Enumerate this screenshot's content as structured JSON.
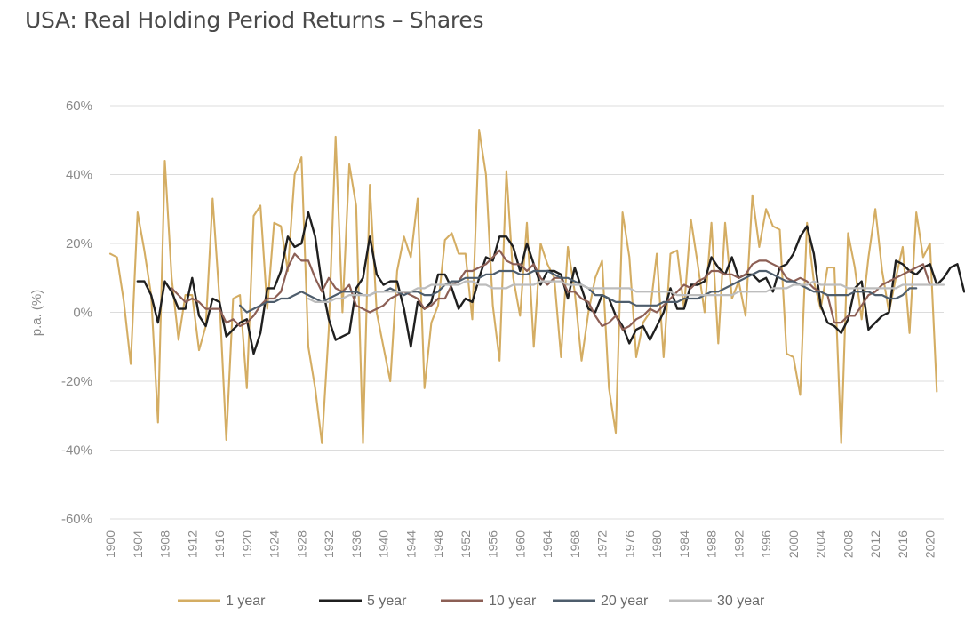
{
  "chart_data": {
    "type": "line",
    "title": "USA: Real Holding Period Returns – Shares",
    "ylabel": "p.a. (%)",
    "xlabel": "",
    "ylim": [
      -60,
      60
    ],
    "xlim": [
      1900,
      2022
    ],
    "yticks": [
      60,
      40,
      20,
      0,
      -20,
      -40,
      -60
    ],
    "ytick_labels": [
      "60%",
      "40%",
      "20%",
      "0%",
      "-20%",
      "-40%",
      "-60%"
    ],
    "xticks": [
      1900,
      1904,
      1908,
      1912,
      1916,
      1920,
      1924,
      1928,
      1932,
      1936,
      1940,
      1944,
      1948,
      1952,
      1956,
      1960,
      1964,
      1968,
      1972,
      1976,
      1980,
      1984,
      1988,
      1992,
      1996,
      2000,
      2004,
      2008,
      2012,
      2016,
      2020
    ],
    "grid": true,
    "legend_position": "bottom",
    "series": [
      {
        "name": "1 year",
        "color": "#d4ad63",
        "start_year": 1900,
        "values": [
          17,
          16,
          3,
          -15,
          29,
          18,
          5,
          -32,
          44,
          10,
          -8,
          5,
          5,
          -11,
          -4,
          33,
          4,
          -37,
          4,
          5,
          -22,
          28,
          31,
          1,
          26,
          25,
          12,
          40,
          45,
          -10,
          -22,
          -38,
          -5,
          51,
          0,
          43,
          31,
          -38,
          37,
          0,
          -10,
          -20,
          12,
          22,
          16,
          33,
          -22,
          -3,
          2,
          21,
          23,
          17,
          17,
          -2,
          53,
          40,
          2,
          -14,
          41,
          10,
          -1,
          26,
          -10,
          20,
          14,
          10,
          -13,
          19,
          6,
          -14,
          0,
          10,
          15,
          -22,
          -35,
          29,
          16,
          -13,
          -3,
          0,
          17,
          -13,
          17,
          18,
          1,
          27,
          14,
          0,
          26,
          -9,
          26,
          4,
          9,
          -1,
          34,
          19,
          30,
          25,
          24,
          -12,
          -13,
          -24,
          26,
          9,
          1,
          13,
          13,
          -38,
          23,
          13,
          -2,
          16,
          30,
          12,
          0,
          10,
          19,
          -6,
          29,
          16,
          20,
          -23
        ]
      },
      {
        "name": "5 year",
        "color": "#1f1f1f",
        "start_year": 1904,
        "values": [
          9,
          9,
          5,
          -3,
          9,
          6,
          1,
          1,
          10,
          -1,
          -4,
          4,
          3,
          -7,
          -5,
          -3,
          -2,
          -12,
          -6,
          7,
          7,
          12,
          22,
          19,
          20,
          29,
          22,
          8,
          -2,
          -8,
          -7,
          -6,
          7,
          10,
          22,
          11,
          8,
          9,
          9,
          1,
          -10,
          3,
          1,
          3,
          11,
          11,
          7,
          1,
          4,
          3,
          10,
          16,
          15,
          22,
          22,
          19,
          12,
          20,
          14,
          8,
          12,
          12,
          11,
          4,
          13,
          7,
          1,
          0,
          5,
          4,
          -1,
          -4,
          -9,
          -5,
          -4,
          -8,
          -4,
          0,
          7,
          1,
          1,
          8,
          8,
          9,
          16,
          13,
          11,
          16,
          10,
          11,
          11,
          9,
          10,
          6,
          13,
          14,
          17,
          22,
          25,
          17,
          2,
          -3,
          -4,
          -6,
          -2,
          7,
          9,
          -5,
          -3,
          -1,
          0,
          15,
          14,
          12,
          11,
          13,
          14,
          8,
          10,
          13,
          14,
          6
        ]
      },
      {
        "name": "10 year",
        "color": "#8c5f55",
        "start_year": 1909,
        "values": [
          7,
          5,
          3,
          4,
          3,
          1,
          1,
          1,
          -3,
          -2,
          -4,
          -3,
          -1,
          2,
          4,
          4,
          6,
          13,
          17,
          15,
          15,
          10,
          6,
          10,
          7,
          6,
          8,
          2,
          1,
          0,
          1,
          2,
          4,
          5,
          6,
          5,
          4,
          1,
          2,
          4,
          4,
          8,
          9,
          12,
          12,
          13,
          14,
          16,
          18,
          15,
          14,
          14,
          12,
          14,
          10,
          8,
          10,
          10,
          6,
          6,
          4,
          3,
          -1,
          -4,
          -3,
          -1,
          -5,
          -4,
          -2,
          -1,
          1,
          0,
          2,
          4,
          6,
          8,
          7,
          9,
          10,
          12,
          12,
          11,
          11,
          10,
          11,
          14,
          15,
          15,
          14,
          13,
          10,
          9,
          10,
          9,
          7,
          6,
          5,
          -3,
          -3,
          -1,
          -1,
          2,
          5,
          6,
          8,
          9,
          10,
          11,
          12,
          13,
          14,
          8
        ]
      },
      {
        "name": "20 year",
        "color": "#4e5d6c",
        "start_year": 1919,
        "values": [
          2,
          0,
          1,
          2,
          3,
          3,
          4,
          4,
          5,
          6,
          5,
          4,
          3,
          4,
          5,
          6,
          6,
          6,
          5,
          5,
          6,
          6,
          7,
          6,
          5,
          6,
          6,
          5,
          5,
          6,
          8,
          9,
          9,
          10,
          10,
          10,
          11,
          11,
          12,
          12,
          12,
          11,
          11,
          12,
          12,
          12,
          11,
          10,
          10,
          9,
          8,
          7,
          5,
          5,
          4,
          3,
          3,
          3,
          2,
          2,
          2,
          2,
          3,
          3,
          3,
          4,
          4,
          4,
          5,
          6,
          6,
          7,
          8,
          9,
          10,
          11,
          12,
          12,
          11,
          10,
          9,
          9,
          8,
          7,
          6,
          6,
          5,
          5,
          5,
          5,
          6,
          6,
          6,
          5,
          5,
          4,
          4,
          5,
          7,
          7
        ]
      },
      {
        "name": "30 year",
        "color": "#bdbdbd",
        "start_year": 1929,
        "values": [
          4,
          3,
          3,
          3,
          4,
          4,
          5,
          5,
          5,
          5,
          6,
          6,
          6,
          6,
          6,
          6,
          7,
          7,
          8,
          8,
          8,
          8,
          8,
          9,
          9,
          8,
          8,
          7,
          7,
          7,
          8,
          8,
          8,
          8,
          9,
          9,
          9,
          9,
          8,
          8,
          8,
          7,
          7,
          7,
          7,
          7,
          7,
          7,
          6,
          6,
          6,
          6,
          6,
          6,
          5,
          5,
          5,
          5,
          5,
          5,
          5,
          5,
          5,
          6,
          6,
          6,
          6,
          6,
          7,
          7,
          7,
          8,
          8,
          8,
          9,
          8,
          8,
          8,
          8,
          7,
          7,
          7,
          7,
          7,
          7,
          7,
          7,
          8,
          8,
          8,
          8,
          8,
          8,
          8
        ]
      }
    ]
  }
}
